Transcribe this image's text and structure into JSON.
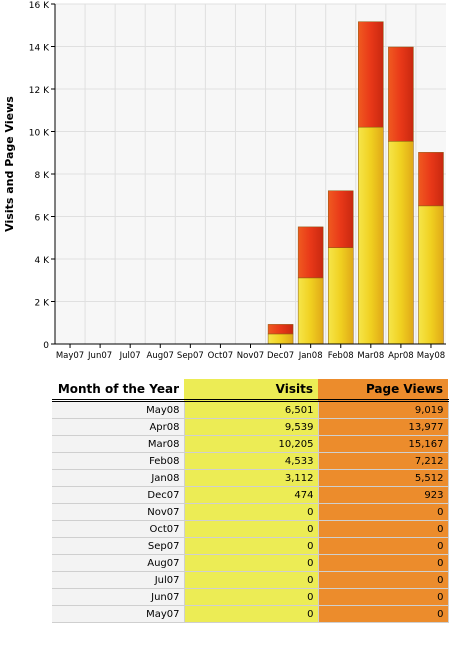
{
  "chart_data": {
    "type": "bar",
    "stacked": true,
    "title": "",
    "xlabel": "",
    "ylabel": "Visits and Page Views",
    "ylim": [
      0,
      16000
    ],
    "yticks": [
      "0",
      "2 K",
      "4 K",
      "6 K",
      "8 K",
      "10 K",
      "12 K",
      "14 K",
      "16 K"
    ],
    "categories": [
      "May07",
      "Jun07",
      "Jul07",
      "Aug07",
      "Sep07",
      "Oct07",
      "Nov07",
      "Dec07",
      "Jan08",
      "Feb08",
      "Mar08",
      "Apr08",
      "May08"
    ],
    "series": [
      {
        "values": [
          0,
          0,
          0,
          0,
          0,
          0,
          0,
          474,
          3112,
          4533,
          10205,
          9539,
          6501
        ],
        "color": "#f0d020"
      },
      {
        "values": [
          0,
          0,
          0,
          0,
          0,
          0,
          0,
          449,
          2400,
          2679,
          4962,
          4438,
          2518
        ],
        "color": "#e84018"
      }
    ],
    "grid": true,
    "legend": "none"
  },
  "table": {
    "headers": {
      "month": "Month of the Year",
      "visits": "Visits",
      "page_views": "Page Views"
    },
    "rows": [
      {
        "month": "May08",
        "visits": "6,501",
        "page_views": "9,019"
      },
      {
        "month": "Apr08",
        "visits": "9,539",
        "page_views": "13,977"
      },
      {
        "month": "Mar08",
        "visits": "10,205",
        "page_views": "15,167"
      },
      {
        "month": "Feb08",
        "visits": "4,533",
        "page_views": "7,212"
      },
      {
        "month": "Jan08",
        "visits": "3,112",
        "page_views": "5,512"
      },
      {
        "month": "Dec07",
        "visits": "474",
        "page_views": "923"
      },
      {
        "month": "Nov07",
        "visits": "0",
        "page_views": "0"
      },
      {
        "month": "Oct07",
        "visits": "0",
        "page_views": "0"
      },
      {
        "month": "Sep07",
        "visits": "0",
        "page_views": "0"
      },
      {
        "month": "Aug07",
        "visits": "0",
        "page_views": "0"
      },
      {
        "month": "Jul07",
        "visits": "0",
        "page_views": "0"
      },
      {
        "month": "Jun07",
        "visits": "0",
        "page_views": "0"
      },
      {
        "month": "May07",
        "visits": "0",
        "page_views": "0"
      }
    ]
  }
}
